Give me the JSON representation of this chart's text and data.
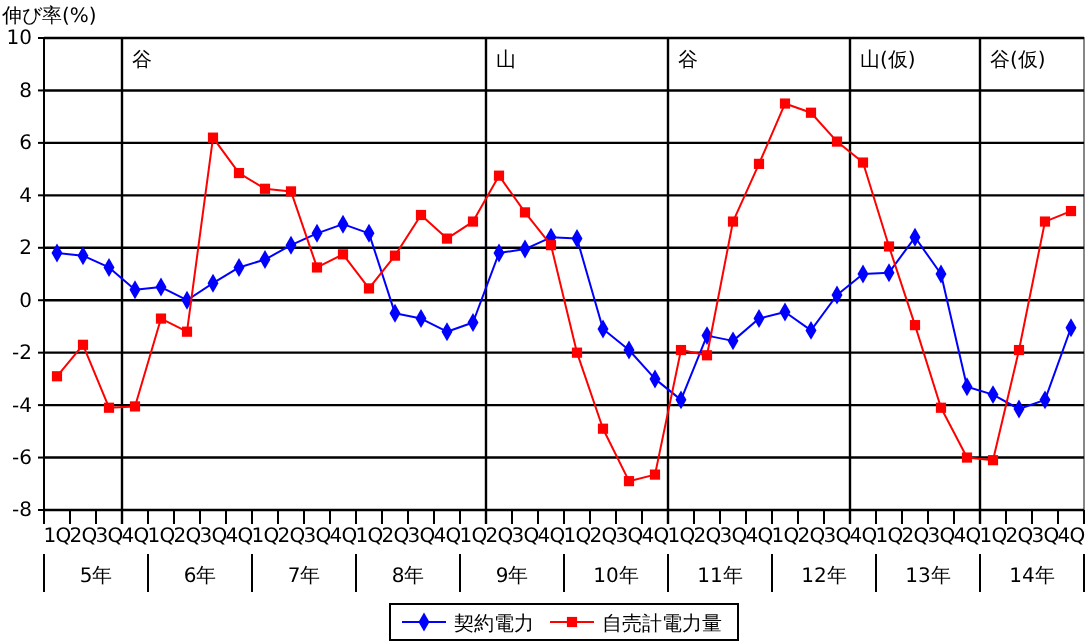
{
  "chart_data": {
    "type": "line",
    "ylabel": "伸び率(%)",
    "categories": [
      "1Q",
      "2Q",
      "3Q",
      "4Q",
      "1Q",
      "2Q",
      "3Q",
      "4Q",
      "1Q",
      "2Q",
      "3Q",
      "4Q",
      "1Q",
      "2Q",
      "3Q",
      "4Q",
      "1Q",
      "2Q",
      "3Q",
      "4Q",
      "1Q",
      "2Q",
      "3Q",
      "4Q",
      "1Q",
      "2Q",
      "3Q",
      "4Q",
      "1Q",
      "2Q",
      "3Q",
      "4Q",
      "1Q",
      "2Q",
      "3Q",
      "4Q",
      "1Q",
      "2Q",
      "3Q",
      "4Q"
    ],
    "annotations": [
      "谷",
      "山",
      "谷",
      "山(仮)",
      "谷(仮)",
      "5年",
      "6年",
      "7年",
      "8年",
      "9年",
      "10年",
      "11年",
      "12年",
      "13年",
      "14年"
    ],
    "series": [
      {
        "name": "契約電力",
        "color": "#0000ff",
        "marker": "diamond",
        "values": [
          1.8,
          1.7,
          1.25,
          0.4,
          0.5,
          0,
          0.65,
          1.25,
          1.55,
          2.1,
          2.55,
          2.9,
          2.55,
          -0.5,
          -0.7,
          -1.2,
          -0.85,
          1.8,
          1.95,
          2.4,
          2.35,
          -1.1,
          -1.9,
          -3.0,
          -3.8,
          -1.35,
          -1.55,
          -0.7,
          -0.45,
          -1.15,
          0.2,
          1.0,
          1.05,
          2.4,
          1.0,
          -3.3,
          -3.6,
          -4.15,
          -3.8,
          -1.05
        ]
      },
      {
        "name": "自売計電力量",
        "color": "#ff0000",
        "marker": "square",
        "values": [
          -2.9,
          -1.7,
          -4.1,
          -4.05,
          -0.7,
          -1.2,
          6.2,
          4.85,
          4.25,
          4.15,
          1.25,
          1.75,
          0.45,
          1.7,
          3.25,
          2.35,
          3.0,
          4.75,
          3.35,
          2.1,
          -2.0,
          -4.9,
          -6.9,
          -6.65,
          -1.9,
          -2.1,
          3.0,
          5.2,
          7.5,
          7.15,
          6.05,
          5.25,
          2.05,
          -0.95,
          -4.1,
          -6.0,
          -6.1,
          -1.9,
          3.0,
          3.4
        ]
      }
    ],
    "ylim": [
      -8,
      10
    ],
    "yticks": [
      -8,
      -6,
      -4,
      -2,
      0,
      2,
      4,
      6,
      8,
      10
    ],
    "grid": "y",
    "legend": "bottom",
    "line_style": "solid"
  }
}
